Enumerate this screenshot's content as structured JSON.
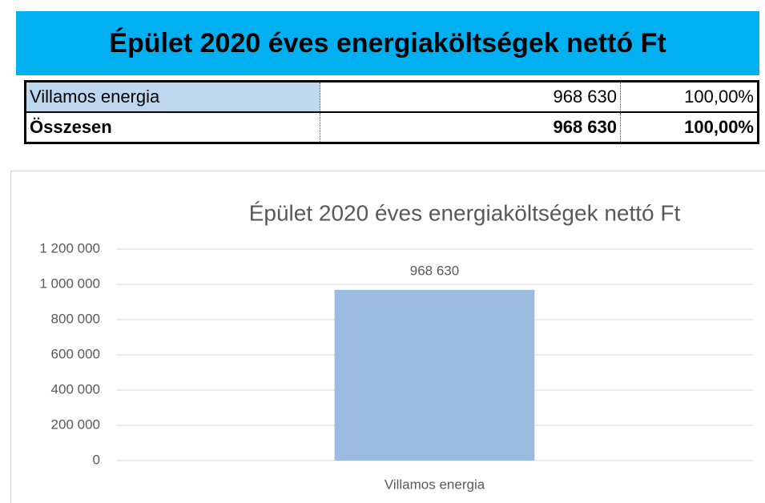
{
  "table": {
    "title": "Épület 2020 éves energiaköltségek nettó Ft",
    "rows": [
      [
        "Villamos energia",
        "968 630",
        "100,00%"
      ],
      [
        "Összesen",
        "968 630",
        "100,00%"
      ]
    ]
  },
  "chart_data": {
    "type": "bar",
    "title": "Épület 2020 éves energiaköltségek nettó Ft",
    "categories": [
      "Villamos energia"
    ],
    "values": [
      968630
    ],
    "value_labels": [
      "968 630"
    ],
    "color": "#9bbbe0",
    "grid": true,
    "ylim": [
      0,
      1200000
    ],
    "yticks": [
      0,
      {
        "value": 200000,
        "label": "200 000"
      },
      {
        "value": 400000,
        "label": "400 000"
      },
      {
        "value": 600000,
        "label": "600 000"
      },
      {
        "value": 800000,
        "label": "800 000"
      },
      {
        "value": 1000000,
        "label": "1 000 000"
      },
      {
        "value": 1200000,
        "label": "1 200 000"
      }
    ]
  }
}
